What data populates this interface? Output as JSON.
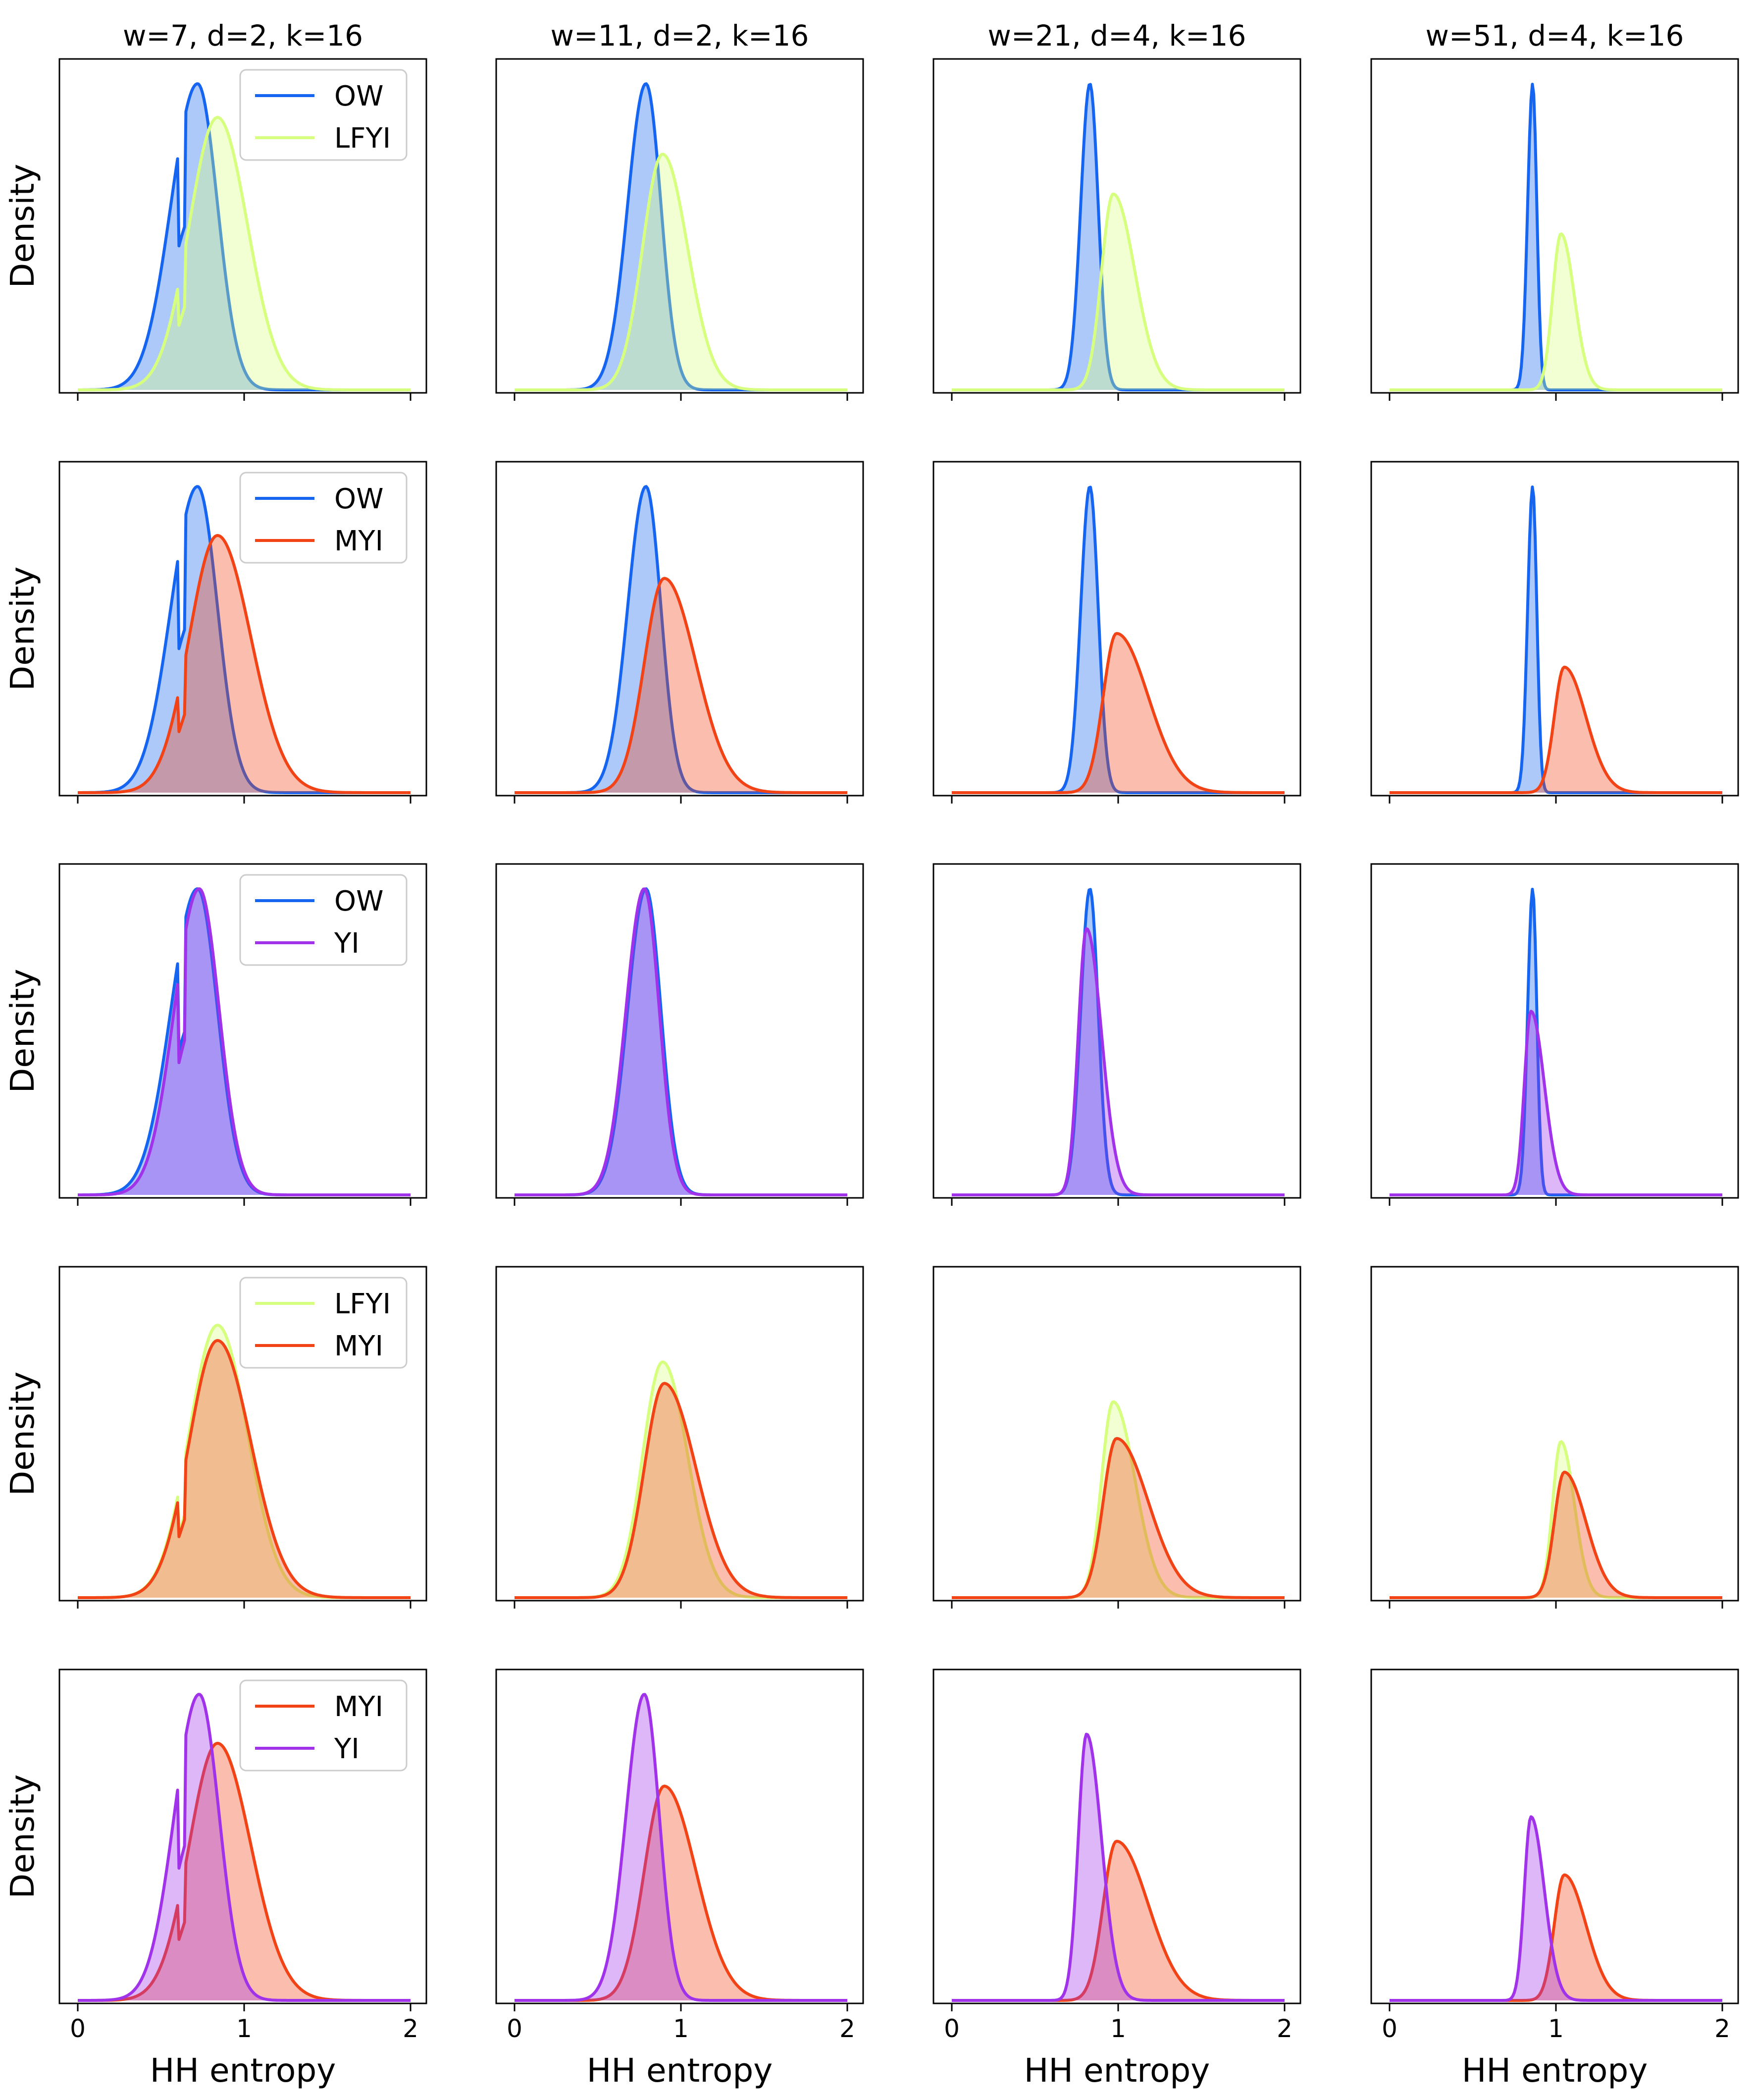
{
  "figure": {
    "ylabel": "Density",
    "xlabel": "HH entropy"
  },
  "chart_data": {
    "type": "area",
    "xlim": [
      0,
      2
    ],
    "x_ticks": [
      0,
      1,
      2
    ],
    "colors": {
      "OW": "#1565f0",
      "LFYI": "#d7ff7f",
      "MYI": "#f24317",
      "YI": "#a032ea"
    },
    "columns": [
      {
        "title": "w=7, d=2, k=16"
      },
      {
        "title": "w=11, d=2, k=16"
      },
      {
        "title": "w=21, d=4, k=16"
      },
      {
        "title": "w=51, d=4, k=16"
      }
    ],
    "rows": [
      {
        "legend": [
          "OW",
          "LFYI"
        ]
      },
      {
        "legend": [
          "OW",
          "MYI"
        ]
      },
      {
        "legend": [
          "OW",
          "YI"
        ]
      },
      {
        "legend": [
          "LFYI",
          "MYI"
        ]
      },
      {
        "legend": [
          "MYI",
          "YI"
        ]
      }
    ],
    "distributions": [
      {
        "OW": {
          "mean": 0.72,
          "sd_left": 0.16,
          "sd_right": 0.12,
          "peak": 1.0,
          "notch": 0.6
        },
        "LFYI": {
          "mean": 0.84,
          "sd_left": 0.17,
          "sd_right": 0.18,
          "peak": 0.89,
          "notch": 0.6
        },
        "MYI": {
          "mean": 0.84,
          "sd_left": 0.17,
          "sd_right": 0.2,
          "peak": 0.84,
          "notch": 0.6
        },
        "YI": {
          "mean": 0.73,
          "sd_left": 0.15,
          "sd_right": 0.12,
          "peak": 1.0,
          "notch": 0.6
        }
      },
      {
        "OW": {
          "mean": 0.79,
          "sd_left": 0.11,
          "sd_right": 0.09,
          "peak": 1.0
        },
        "LFYI": {
          "mean": 0.89,
          "sd_left": 0.12,
          "sd_right": 0.15,
          "peak": 0.77
        },
        "MYI": {
          "mean": 0.9,
          "sd_left": 0.12,
          "sd_right": 0.19,
          "peak": 0.7
        },
        "YI": {
          "mean": 0.78,
          "sd_left": 0.11,
          "sd_right": 0.09,
          "peak": 1.0
        }
      },
      {
        "OW": {
          "mean": 0.83,
          "sd_left": 0.055,
          "sd_right": 0.05,
          "peak": 1.0
        },
        "LFYI": {
          "mean": 0.97,
          "sd_left": 0.07,
          "sd_right": 0.13,
          "peak": 0.64
        },
        "MYI": {
          "mean": 0.99,
          "sd_left": 0.08,
          "sd_right": 0.19,
          "peak": 0.52
        },
        "YI": {
          "mean": 0.81,
          "sd_left": 0.05,
          "sd_right": 0.09,
          "peak": 0.87
        }
      },
      {
        "OW": {
          "mean": 0.86,
          "sd_left": 0.03,
          "sd_right": 0.025,
          "peak": 1.0
        },
        "LFYI": {
          "mean": 1.03,
          "sd_left": 0.05,
          "sd_right": 0.08,
          "peak": 0.51
        },
        "MYI": {
          "mean": 1.05,
          "sd_left": 0.06,
          "sd_right": 0.13,
          "peak": 0.41
        },
        "YI": {
          "mean": 0.85,
          "sd_left": 0.04,
          "sd_right": 0.08,
          "peak": 0.6
        }
      }
    ]
  }
}
